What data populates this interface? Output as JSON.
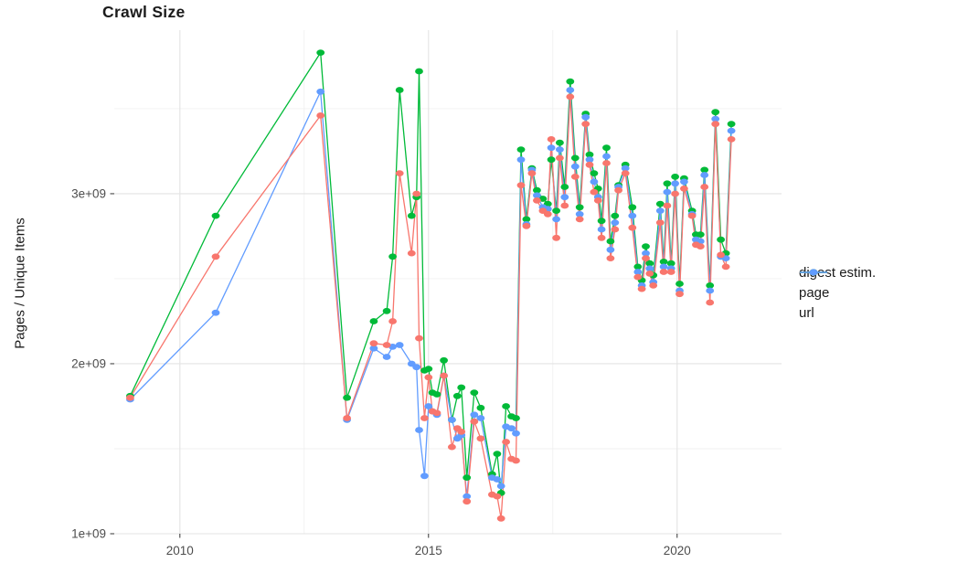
{
  "chart_data": {
    "type": "line",
    "title": "Crawl Size",
    "ylabel": "Pages / Unique Items",
    "xlabel": "",
    "legend_position": "right",
    "grid": "major+minor",
    "x_range": [
      2008.68,
      2022.1
    ],
    "y_range_e9": [
      1.0,
      3.962
    ],
    "x_major_ticks": [
      {
        "value": 2010,
        "label": "2010"
      },
      {
        "value": 2015,
        "label": "2015"
      },
      {
        "value": 2020,
        "label": "2020"
      }
    ],
    "x_minor_ticks": [
      2012.5,
      2017.5
    ],
    "y_major_ticks": [
      {
        "value": 1,
        "label": "1e+09"
      },
      {
        "value": 2,
        "label": "2e+09"
      },
      {
        "value": 3,
        "label": "3e+09"
      }
    ],
    "y_minor_ticks": [
      1.5,
      2.5,
      3.5
    ],
    "y_unit": "1e+09 pages / unique items",
    "x": [
      2009.0,
      2010.72,
      2012.83,
      2013.36,
      2013.9,
      2014.16,
      2014.28,
      2014.42,
      2014.66,
      2014.76,
      2014.81,
      2014.92,
      2015.0,
      2015.08,
      2015.17,
      2015.31,
      2015.47,
      2015.58,
      2015.66,
      2015.77,
      2015.92,
      2016.05,
      2016.28,
      2016.38,
      2016.46,
      2016.56,
      2016.67,
      2016.76,
      2016.86,
      2016.97,
      2017.08,
      2017.18,
      2017.3,
      2017.4,
      2017.47,
      2017.57,
      2017.64,
      2017.74,
      2017.85,
      2017.95,
      2018.04,
      2018.16,
      2018.24,
      2018.33,
      2018.41,
      2018.48,
      2018.58,
      2018.66,
      2018.75,
      2018.82,
      2018.96,
      2019.1,
      2019.21,
      2019.29,
      2019.37,
      2019.45,
      2019.52,
      2019.66,
      2019.73,
      2019.8,
      2019.88,
      2019.96,
      2020.05,
      2020.14,
      2020.3,
      2020.38,
      2020.47,
      2020.55,
      2020.66,
      2020.77,
      2020.88,
      2020.98,
      2021.09
    ],
    "series": [
      {
        "name": "digest estim.",
        "color": "#F8766D",
        "values_e9": [
          1.8,
          2.63,
          3.46,
          1.68,
          2.12,
          2.11,
          2.25,
          3.12,
          2.65,
          3.0,
          2.15,
          1.68,
          1.92,
          1.72,
          1.71,
          1.93,
          1.51,
          1.62,
          1.6,
          1.19,
          1.66,
          1.56,
          1.23,
          1.22,
          1.09,
          1.54,
          1.44,
          1.43,
          3.05,
          2.81,
          3.12,
          2.96,
          2.9,
          2.88,
          3.32,
          2.74,
          3.21,
          2.93,
          3.57,
          3.1,
          2.85,
          3.41,
          3.17,
          3.01,
          2.96,
          2.74,
          3.18,
          2.62,
          2.79,
          3.02,
          3.12,
          2.8,
          2.51,
          2.44,
          2.62,
          2.53,
          2.46,
          2.83,
          2.54,
          2.93,
          2.54,
          3.0,
          2.41,
          3.03,
          2.87,
          2.7,
          2.69,
          3.04,
          2.36,
          3.41,
          2.64,
          2.57,
          3.32
        ]
      },
      {
        "name": "page",
        "color": "#00BA38",
        "values_e9": [
          1.81,
          2.87,
          3.83,
          1.8,
          2.25,
          2.31,
          2.63,
          3.61,
          2.87,
          2.98,
          3.72,
          1.96,
          1.97,
          1.83,
          1.82,
          2.02,
          1.67,
          1.81,
          1.86,
          1.33,
          1.83,
          1.74,
          1.35,
          1.47,
          1.24,
          1.75,
          1.69,
          1.68,
          3.26,
          2.85,
          3.15,
          3.02,
          2.97,
          2.94,
          3.2,
          2.9,
          3.3,
          3.04,
          3.66,
          3.21,
          2.92,
          3.47,
          3.23,
          3.12,
          3.03,
          2.84,
          3.27,
          2.72,
          2.87,
          3.05,
          3.17,
          2.92,
          2.57,
          2.49,
          2.69,
          2.59,
          2.52,
          2.94,
          2.6,
          3.06,
          2.59,
          3.1,
          2.47,
          3.09,
          2.9,
          2.76,
          2.76,
          3.14,
          2.46,
          3.48,
          2.73,
          2.65,
          3.41
        ]
      },
      {
        "name": "url",
        "color": "#619CFF",
        "values_e9": [
          1.79,
          2.3,
          3.6,
          1.67,
          2.09,
          2.04,
          2.1,
          2.11,
          2.0,
          1.98,
          1.61,
          1.34,
          1.75,
          1.72,
          1.7,
          1.93,
          1.67,
          1.56,
          1.58,
          1.22,
          1.7,
          1.68,
          1.33,
          1.32,
          1.28,
          1.63,
          1.62,
          1.59,
          3.2,
          2.82,
          3.14,
          2.99,
          2.92,
          2.91,
          3.27,
          2.85,
          3.26,
          2.98,
          3.61,
          3.16,
          2.88,
          3.45,
          3.2,
          3.07,
          2.98,
          2.79,
          3.22,
          2.67,
          2.83,
          3.04,
          3.15,
          2.87,
          2.54,
          2.46,
          2.65,
          2.56,
          2.48,
          2.9,
          2.57,
          3.01,
          2.56,
          3.06,
          2.43,
          3.07,
          2.88,
          2.73,
          2.72,
          3.11,
          2.43,
          3.44,
          2.63,
          2.62,
          3.37
        ]
      }
    ],
    "draw_order": [
      "page",
      "url",
      "digest estim."
    ],
    "colors": {
      "grid_major": "#E3E3E3",
      "grid_minor": "#F0F0F0",
      "tick_mark": "#333333",
      "tick_label": "#4D4D4D",
      "text": "#1b1b1b",
      "background": "#ffffff"
    }
  },
  "legend": {
    "items": [
      {
        "label": "digest estim.",
        "color": "#F8766D"
      },
      {
        "label": "page",
        "color": "#00BA38"
      },
      {
        "label": "url",
        "color": "#619CFF"
      }
    ]
  }
}
